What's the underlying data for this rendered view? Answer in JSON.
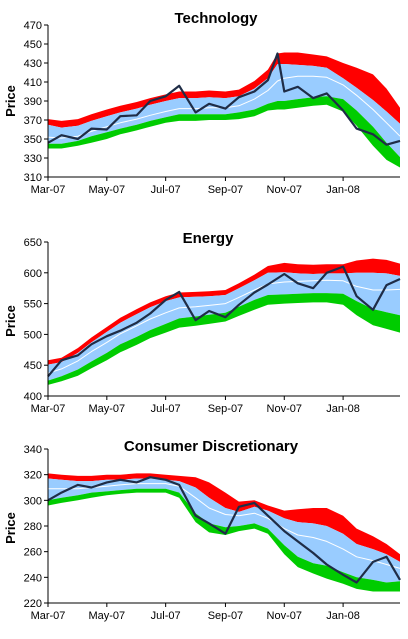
{
  "colors": {
    "upper_band": "#ff0000",
    "middle_band": "#99ccff",
    "lower_band": "#00cc00",
    "price_line": "#1f2d47",
    "moving_average_line": "#ffffff"
  },
  "chart_data": [
    {
      "type": "area",
      "title": "Technology",
      "ylabel": "Price",
      "xlabel": "",
      "ylim": [
        310,
        470
      ],
      "yticks": [
        310,
        330,
        350,
        370,
        390,
        410,
        430,
        450,
        470
      ],
      "xticks": [
        "Mar-07",
        "May-07",
        "Jul-07",
        "Sep-07",
        "Nov-07",
        "Jan-08"
      ],
      "grid": false,
      "legend": "none",
      "x": [
        "2007-03-01",
        "2007-03-15",
        "2007-04-01",
        "2007-04-15",
        "2007-05-01",
        "2007-05-15",
        "2007-06-01",
        "2007-06-15",
        "2007-07-01",
        "2007-07-15",
        "2007-08-01",
        "2007-08-15",
        "2007-09-01",
        "2007-09-15",
        "2007-10-01",
        "2007-10-15",
        "2007-10-25",
        "2007-11-01",
        "2007-11-15",
        "2007-12-01",
        "2007-12-15",
        "2008-01-01",
        "2008-01-15",
        "2008-02-01",
        "2008-02-15",
        "2008-02-29"
      ],
      "series": [
        {
          "role": "upper-outer",
          "values": [
            371,
            369,
            371,
            376,
            381,
            385,
            389,
            393,
            397,
            400,
            400,
            401,
            400,
            402,
            411,
            423,
            440,
            441,
            441,
            439,
            437,
            430,
            425,
            418,
            403,
            383
          ]
        },
        {
          "role": "upper-inner",
          "values": [
            365,
            362,
            364,
            369,
            374,
            378,
            382,
            386,
            390,
            393,
            393,
            394,
            393,
            395,
            403,
            414,
            429,
            429,
            428,
            427,
            425,
            414,
            404,
            391,
            379,
            366
          ]
        },
        {
          "role": "moving-average",
          "values": [
            352,
            351,
            353,
            358,
            363,
            367,
            371,
            375,
            379,
            382,
            382,
            383,
            383,
            385,
            392,
            401,
            411,
            414,
            416,
            416,
            415,
            407,
            396,
            381,
            367,
            353
          ]
        },
        {
          "role": "lower-inner",
          "values": [
            345,
            345,
            348,
            353,
            357,
            361,
            365,
            369,
            373,
            376,
            376,
            376,
            376,
            378,
            381,
            387,
            390,
            390,
            392,
            394,
            395,
            392,
            380,
            363,
            346,
            331
          ]
        },
        {
          "role": "lower-outer",
          "values": [
            340,
            340,
            343,
            346,
            350,
            355,
            359,
            363,
            367,
            369,
            369,
            370,
            370,
            371,
            374,
            380,
            381,
            381,
            383,
            385,
            386,
            379,
            364,
            343,
            328,
            320
          ]
        },
        {
          "role": "price",
          "values": [
            346,
            354,
            350,
            361,
            360,
            374,
            375,
            390,
            395,
            406,
            378,
            387,
            382,
            394,
            400,
            412,
            440,
            400,
            405,
            393,
            398,
            380,
            361,
            355,
            344,
            348
          ]
        }
      ]
    },
    {
      "type": "area",
      "title": "Energy",
      "ylabel": "Price",
      "xlabel": "",
      "ylim": [
        400,
        650
      ],
      "yticks": [
        400,
        450,
        500,
        550,
        600,
        650
      ],
      "xticks": [
        "Mar-07",
        "May-07",
        "Jul-07",
        "Sep-07",
        "Nov-07",
        "Jan-08"
      ],
      "grid": false,
      "legend": "none",
      "x": [
        "2007-03-01",
        "2007-03-15",
        "2007-04-01",
        "2007-04-15",
        "2007-05-01",
        "2007-05-15",
        "2007-06-01",
        "2007-06-15",
        "2007-07-01",
        "2007-07-15",
        "2007-08-01",
        "2007-08-15",
        "2007-09-01",
        "2007-09-15",
        "2007-10-01",
        "2007-10-15",
        "2007-11-01",
        "2007-11-15",
        "2007-12-01",
        "2007-12-15",
        "2008-01-01",
        "2008-01-15",
        "2008-02-01",
        "2008-02-15",
        "2008-02-29"
      ],
      "series": [
        {
          "role": "upper-outer",
          "values": [
            458,
            462,
            478,
            495,
            512,
            527,
            541,
            552,
            562,
            568,
            569,
            570,
            572,
            583,
            597,
            611,
            616,
            614,
            613,
            614,
            614,
            620,
            623,
            621,
            615
          ]
        },
        {
          "role": "upper-inner",
          "values": [
            451,
            455,
            470,
            487,
            504,
            519,
            533,
            544,
            554,
            560,
            561,
            562,
            564,
            575,
            588,
            600,
            601,
            599,
            598,
            599,
            599,
            600,
            600,
            599,
            595
          ]
        },
        {
          "role": "moving-average",
          "values": [
            437,
            444,
            457,
            472,
            487,
            501,
            514,
            525,
            535,
            543,
            545,
            547,
            550,
            560,
            572,
            582,
            585,
            586,
            587,
            588,
            587,
            578,
            572,
            572,
            573
          ]
        },
        {
          "role": "lower-inner",
          "values": [
            425,
            432,
            443,
            456,
            470,
            484,
            496,
            507,
            517,
            526,
            529,
            532,
            535,
            545,
            556,
            564,
            565,
            566,
            567,
            567,
            566,
            554,
            541,
            536,
            531
          ]
        },
        {
          "role": "lower-outer",
          "values": [
            418,
            424,
            433,
            445,
            458,
            471,
            483,
            494,
            503,
            511,
            514,
            517,
            521,
            530,
            540,
            548,
            550,
            551,
            552,
            552,
            548,
            531,
            515,
            509,
            503
          ]
        },
        {
          "role": "price",
          "values": [
            432,
            458,
            466,
            484,
            497,
            506,
            519,
            534,
            556,
            569,
            523,
            538,
            528,
            548,
            568,
            581,
            598,
            583,
            575,
            600,
            610,
            562,
            540,
            580,
            590
          ]
        }
      ]
    },
    {
      "type": "area",
      "title": "Consumer Discretionary",
      "ylabel": "Price",
      "xlabel": "",
      "ylim": [
        220,
        340
      ],
      "yticks": [
        220,
        240,
        260,
        280,
        300,
        320,
        340
      ],
      "xticks": [
        "Mar-07",
        "May-07",
        "Jul-07",
        "Sep-07",
        "Nov-07",
        "Jan-08"
      ],
      "grid": false,
      "legend": "none",
      "x": [
        "2007-03-01",
        "2007-03-15",
        "2007-04-01",
        "2007-04-15",
        "2007-05-01",
        "2007-05-15",
        "2007-06-01",
        "2007-06-15",
        "2007-07-01",
        "2007-07-15",
        "2007-08-01",
        "2007-08-15",
        "2007-09-01",
        "2007-09-15",
        "2007-10-01",
        "2007-10-15",
        "2007-11-01",
        "2007-11-15",
        "2007-12-01",
        "2007-12-15",
        "2008-01-01",
        "2008-01-15",
        "2008-02-01",
        "2008-02-15",
        "2008-02-29"
      ],
      "series": [
        {
          "role": "upper-outer",
          "values": [
            321,
            320,
            319,
            319,
            320,
            320,
            321,
            321,
            320,
            319,
            318,
            314,
            306,
            299,
            300,
            296,
            292,
            293,
            294,
            294,
            288,
            278,
            272,
            266,
            258
          ]
        },
        {
          "role": "upper-inner",
          "values": [
            317,
            316,
            315,
            315,
            316,
            316,
            317,
            317,
            316,
            315,
            310,
            302,
            294,
            291,
            295,
            292,
            286,
            283,
            282,
            280,
            274,
            266,
            262,
            258,
            252
          ]
        },
        {
          "role": "moving-average",
          "values": [
            309,
            309,
            309,
            310,
            311,
            312,
            313,
            313,
            313,
            311,
            302,
            294,
            289,
            288,
            290,
            286,
            278,
            273,
            271,
            268,
            262,
            256,
            253,
            250,
            247
          ]
        },
        {
          "role": "lower-inner",
          "values": [
            300,
            302,
            304,
            306,
            307,
            308,
            309,
            309,
            309,
            306,
            290,
            282,
            279,
            280,
            282,
            278,
            265,
            256,
            251,
            249,
            244,
            240,
            238,
            236,
            237
          ]
        },
        {
          "role": "lower-outer",
          "values": [
            296,
            298,
            300,
            302,
            304,
            305,
            306,
            306,
            306,
            302,
            283,
            275,
            273,
            276,
            278,
            274,
            258,
            248,
            243,
            239,
            235,
            231,
            229,
            229,
            229
          ]
        },
        {
          "role": "price",
          "values": [
            300,
            306,
            312,
            310,
            314,
            316,
            314,
            318,
            316,
            312,
            288,
            282,
            274,
            295,
            298,
            288,
            276,
            268,
            259,
            250,
            242,
            236,
            252,
            256,
            238
          ]
        }
      ]
    }
  ]
}
